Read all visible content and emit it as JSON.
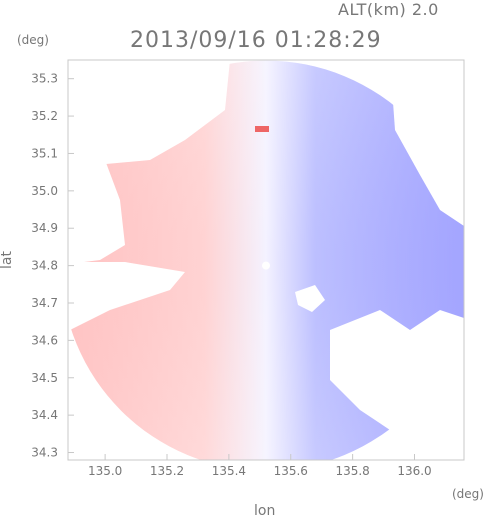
{
  "header": {
    "altitude_label": "ALT(km) 2.0",
    "timestamp": "2013/09/16 01:28:29"
  },
  "axes": {
    "y_unit": "(deg)",
    "x_unit": "(deg)",
    "y_title": "lat",
    "x_title": "lon"
  },
  "chart_data": {
    "type": "heatmap",
    "xlabel": "lon",
    "ylabel": "lat",
    "xlim": [
      134.88,
      136.16
    ],
    "ylim": [
      34.28,
      35.35
    ],
    "x_ticks": [
      "135.0",
      "135.2",
      "135.4",
      "135.6",
      "135.8",
      "136.0"
    ],
    "x_tick_values": [
      135.0,
      135.2,
      135.4,
      135.6,
      135.8,
      136.0
    ],
    "y_ticks": [
      "34.3",
      "34.4",
      "34.5",
      "34.6",
      "34.7",
      "34.8",
      "34.9",
      "35.0",
      "35.1",
      "35.2",
      "35.3"
    ],
    "y_tick_values": [
      34.3,
      34.4,
      34.5,
      34.6,
      34.7,
      34.8,
      34.9,
      35.0,
      35.1,
      35.2,
      35.3
    ],
    "radar_center": [
      135.52,
      34.8
    ],
    "colors": {
      "approaching": "#7a7dff",
      "receding": "#ff9a9a",
      "near_zero": "#f4f4ff",
      "frame": "#c8c8c8"
    }
  }
}
